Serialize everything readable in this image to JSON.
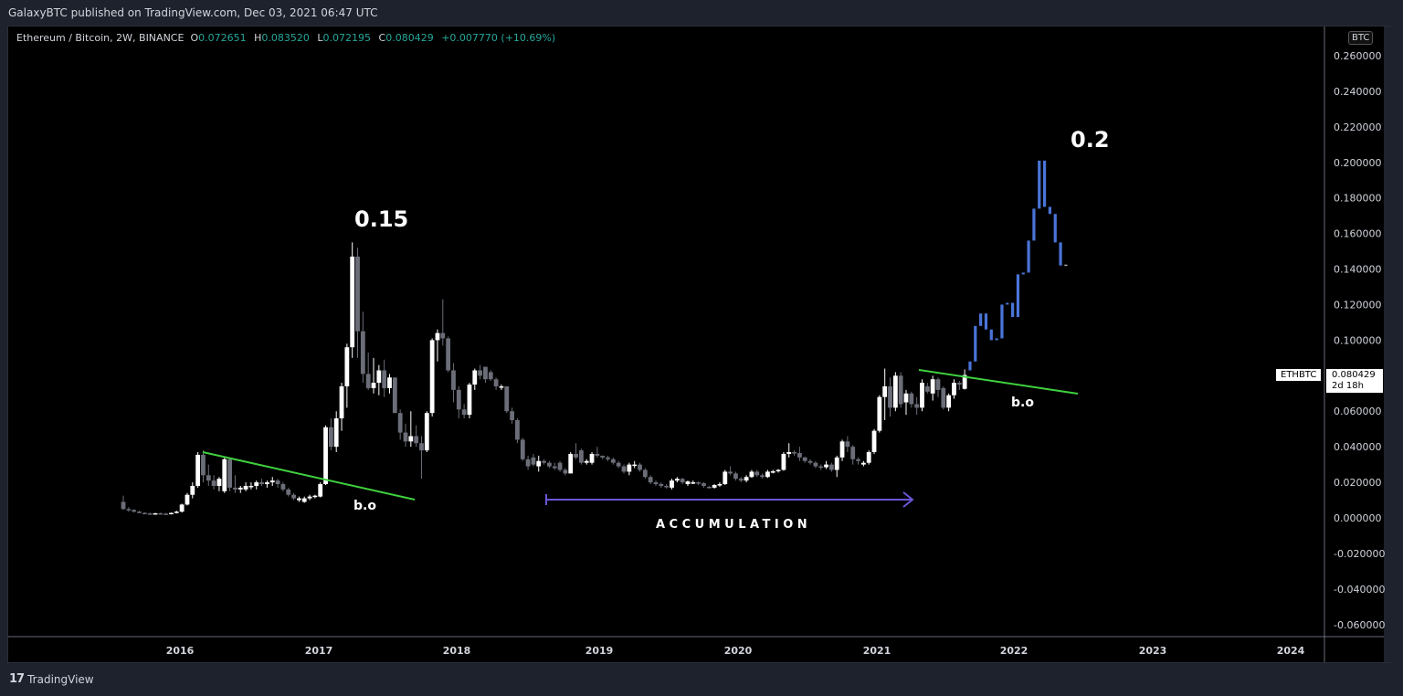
{
  "header": {
    "published": "GalaxyBTC published on TradingView.com, Dec 03, 2021 06:47 UTC"
  },
  "legend": {
    "symbol": "Ethereum / Bitcoin, 2W, BINANCE",
    "o_label": "O",
    "o": "0.072651",
    "h_label": "H",
    "h": "0.083520",
    "l_label": "L",
    "l": "0.072195",
    "c_label": "C",
    "c": "0.080429",
    "change": "+0.007770 (+10.69%)"
  },
  "price_axis": {
    "currency_badge": "BTC",
    "ticks": [
      "0.260000",
      "0.240000",
      "0.220000",
      "0.200000",
      "0.180000",
      "0.160000",
      "0.140000",
      "0.120000",
      "0.100000",
      "0.080000",
      "0.060000",
      "0.040000",
      "0.020000",
      "0.000000",
      "-0.020000",
      "-0.040000",
      "-0.060000"
    ],
    "last_symbol": "ETHBTC",
    "last_price": "0.080429",
    "countdown": "2d 18h"
  },
  "time_axis": {
    "ticks": [
      "2016",
      "2017",
      "2018",
      "2019",
      "2020",
      "2021",
      "2022",
      "2023",
      "2024"
    ]
  },
  "annotations": {
    "peak1": "0.15",
    "peak2": "0.2",
    "bo1": "b.o",
    "bo2": "b.o",
    "accumulation": "ACCUMULATION"
  },
  "footer": {
    "logo": "17",
    "brand": "TradingView"
  },
  "colors": {
    "up": "#ffffff",
    "down": "#6b6e78",
    "projection": "#4a74d8",
    "trendline": "#3fd13f",
    "arrow": "#6a56d6",
    "background": "#000000",
    "frame": "#1e222d"
  },
  "chart_data": {
    "type": "candlestick",
    "title": "Ethereum / Bitcoin, 2W, BINANCE",
    "xlabel": "",
    "ylabel": "BTC",
    "ylim": [
      -0.065,
      0.27
    ],
    "x_start": "2015-08",
    "interval": "2W",
    "grid": false,
    "legend_position": "top-left",
    "ohlc": [
      [
        0.009,
        0.0125,
        0.0045,
        0.005
      ],
      [
        0.005,
        0.006,
        0.0035,
        0.0045
      ],
      [
        0.0045,
        0.0048,
        0.003,
        0.0035
      ],
      [
        0.0035,
        0.004,
        0.0025,
        0.0028
      ],
      [
        0.0028,
        0.0032,
        0.0022,
        0.0025
      ],
      [
        0.0025,
        0.003,
        0.002,
        0.0024
      ],
      [
        0.0024,
        0.0028,
        0.002,
        0.0026
      ],
      [
        0.0026,
        0.003,
        0.0022,
        0.0024
      ],
      [
        0.0024,
        0.0028,
        0.002,
        0.0022
      ],
      [
        0.0022,
        0.003,
        0.002,
        0.0028
      ],
      [
        0.0028,
        0.004,
        0.0025,
        0.0035
      ],
      [
        0.0035,
        0.008,
        0.003,
        0.0075
      ],
      [
        0.0075,
        0.014,
        0.007,
        0.013
      ],
      [
        0.013,
        0.02,
        0.011,
        0.018
      ],
      [
        0.018,
        0.037,
        0.017,
        0.0355
      ],
      [
        0.0355,
        0.038,
        0.02,
        0.024
      ],
      [
        0.024,
        0.03,
        0.018,
        0.021
      ],
      [
        0.021,
        0.024,
        0.016,
        0.018
      ],
      [
        0.018,
        0.023,
        0.015,
        0.022
      ],
      [
        0.015,
        0.034,
        0.014,
        0.033
      ],
      [
        0.033,
        0.034,
        0.015,
        0.017
      ],
      [
        0.017,
        0.024,
        0.014,
        0.016
      ],
      [
        0.016,
        0.018,
        0.014,
        0.017
      ],
      [
        0.016,
        0.02,
        0.015,
        0.018
      ],
      [
        0.018,
        0.02,
        0.016,
        0.018
      ],
      [
        0.018,
        0.021,
        0.016,
        0.02
      ],
      [
        0.02,
        0.022,
        0.018,
        0.019
      ],
      [
        0.019,
        0.021,
        0.017,
        0.02
      ],
      [
        0.02,
        0.023,
        0.018,
        0.021
      ],
      [
        0.021,
        0.022,
        0.017,
        0.019
      ],
      [
        0.019,
        0.02,
        0.015,
        0.016
      ],
      [
        0.016,
        0.017,
        0.012,
        0.013
      ],
      [
        0.013,
        0.014,
        0.01,
        0.011
      ],
      [
        0.01,
        0.012,
        0.009,
        0.011
      ],
      [
        0.009,
        0.012,
        0.0085,
        0.011
      ],
      [
        0.011,
        0.013,
        0.01,
        0.012
      ],
      [
        0.012,
        0.013,
        0.011,
        0.0125
      ],
      [
        0.012,
        0.02,
        0.0115,
        0.019
      ],
      [
        0.019,
        0.052,
        0.0185,
        0.051
      ],
      [
        0.051,
        0.056,
        0.038,
        0.04
      ],
      [
        0.04,
        0.06,
        0.037,
        0.056
      ],
      [
        0.056,
        0.076,
        0.049,
        0.074
      ],
      [
        0.074,
        0.098,
        0.062,
        0.096
      ],
      [
        0.096,
        0.155,
        0.09,
        0.147
      ],
      [
        0.147,
        0.152,
        0.09,
        0.105
      ],
      [
        0.105,
        0.116,
        0.076,
        0.081
      ],
      [
        0.081,
        0.093,
        0.072,
        0.073
      ],
      [
        0.073,
        0.09,
        0.07,
        0.076
      ],
      [
        0.076,
        0.086,
        0.069,
        0.083
      ],
      [
        0.083,
        0.089,
        0.068,
        0.073
      ],
      [
        0.073,
        0.081,
        0.07,
        0.079
      ],
      [
        0.079,
        0.079,
        0.059,
        0.059
      ],
      [
        0.059,
        0.061,
        0.044,
        0.048
      ],
      [
        0.048,
        0.053,
        0.04,
        0.043
      ],
      [
        0.043,
        0.06,
        0.04,
        0.046
      ],
      [
        0.046,
        0.052,
        0.04,
        0.042
      ],
      [
        0.042,
        0.046,
        0.022,
        0.038
      ],
      [
        0.038,
        0.06,
        0.037,
        0.059
      ],
      [
        0.059,
        0.101,
        0.057,
        0.1
      ],
      [
        0.1,
        0.106,
        0.088,
        0.104
      ],
      [
        0.104,
        0.123,
        0.097,
        0.101
      ],
      [
        0.101,
        0.102,
        0.082,
        0.083
      ],
      [
        0.083,
        0.087,
        0.065,
        0.072
      ],
      [
        0.072,
        0.074,
        0.056,
        0.061
      ],
      [
        0.061,
        0.064,
        0.056,
        0.058
      ],
      [
        0.058,
        0.076,
        0.056,
        0.075
      ],
      [
        0.075,
        0.084,
        0.072,
        0.083
      ],
      [
        0.083,
        0.086,
        0.078,
        0.08
      ],
      [
        0.085,
        0.085,
        0.076,
        0.078
      ],
      [
        0.082,
        0.083,
        0.077,
        0.078
      ],
      [
        0.078,
        0.079,
        0.072,
        0.074
      ],
      [
        0.074,
        0.075,
        0.072,
        0.074
      ],
      [
        0.074,
        0.074,
        0.059,
        0.06
      ],
      [
        0.06,
        0.062,
        0.053,
        0.055
      ],
      [
        0.055,
        0.056,
        0.042,
        0.044
      ],
      [
        0.044,
        0.045,
        0.032,
        0.033
      ],
      [
        0.033,
        0.035,
        0.027,
        0.029
      ],
      [
        0.034,
        0.036,
        0.029,
        0.03
      ],
      [
        0.029,
        0.035,
        0.026,
        0.032
      ],
      [
        0.032,
        0.033,
        0.03,
        0.031
      ],
      [
        0.031,
        0.032,
        0.028,
        0.029
      ],
      [
        0.029,
        0.031,
        0.027,
        0.028
      ],
      [
        0.031,
        0.032,
        0.026,
        0.027
      ],
      [
        0.027,
        0.028,
        0.024,
        0.025
      ],
      [
        0.025,
        0.037,
        0.025,
        0.036
      ],
      [
        0.036,
        0.042,
        0.033,
        0.034
      ],
      [
        0.038,
        0.039,
        0.03,
        0.031
      ],
      [
        0.031,
        0.033,
        0.03,
        0.032
      ],
      [
        0.031,
        0.037,
        0.03,
        0.036
      ],
      [
        0.036,
        0.04,
        0.034,
        0.035
      ],
      [
        0.035,
        0.035,
        0.033,
        0.034
      ],
      [
        0.034,
        0.035,
        0.032,
        0.033
      ],
      [
        0.033,
        0.034,
        0.03,
        0.031
      ],
      [
        0.031,
        0.032,
        0.028,
        0.029
      ],
      [
        0.029,
        0.03,
        0.025,
        0.026
      ],
      [
        0.026,
        0.031,
        0.024,
        0.03
      ],
      [
        0.03,
        0.032,
        0.028,
        0.03
      ],
      [
        0.03,
        0.031,
        0.026,
        0.027
      ],
      [
        0.027,
        0.028,
        0.022,
        0.023
      ],
      [
        0.023,
        0.024,
        0.019,
        0.02
      ],
      [
        0.02,
        0.021,
        0.018,
        0.019
      ],
      [
        0.019,
        0.02,
        0.017,
        0.018
      ],
      [
        0.018,
        0.019,
        0.0165,
        0.0175
      ],
      [
        0.017,
        0.022,
        0.016,
        0.021
      ],
      [
        0.021,
        0.023,
        0.02,
        0.022
      ],
      [
        0.022,
        0.0225,
        0.019,
        0.02
      ],
      [
        0.019,
        0.021,
        0.018,
        0.0205
      ],
      [
        0.02,
        0.021,
        0.019,
        0.02
      ],
      [
        0.02,
        0.0205,
        0.0185,
        0.0195
      ],
      [
        0.0195,
        0.02,
        0.017,
        0.018
      ],
      [
        0.0175,
        0.018,
        0.0165,
        0.017
      ],
      [
        0.017,
        0.019,
        0.0165,
        0.0185
      ],
      [
        0.0185,
        0.02,
        0.0175,
        0.019
      ],
      [
        0.019,
        0.027,
        0.0185,
        0.026
      ],
      [
        0.026,
        0.029,
        0.024,
        0.025
      ],
      [
        0.025,
        0.026,
        0.021,
        0.022
      ],
      [
        0.022,
        0.023,
        0.02,
        0.021
      ],
      [
        0.021,
        0.024,
        0.02,
        0.023
      ],
      [
        0.023,
        0.027,
        0.0225,
        0.026
      ],
      [
        0.026,
        0.027,
        0.023,
        0.024
      ],
      [
        0.024,
        0.025,
        0.022,
        0.023
      ],
      [
        0.023,
        0.027,
        0.0225,
        0.026
      ],
      [
        0.026,
        0.027,
        0.025,
        0.0262
      ],
      [
        0.0262,
        0.0275,
        0.0255,
        0.027
      ],
      [
        0.027,
        0.037,
        0.0265,
        0.036
      ],
      [
        0.036,
        0.042,
        0.034,
        0.037
      ],
      [
        0.037,
        0.038,
        0.035,
        0.0365
      ],
      [
        0.0365,
        0.04,
        0.032,
        0.034
      ],
      [
        0.034,
        0.0345,
        0.031,
        0.032
      ],
      [
        0.032,
        0.033,
        0.03,
        0.031
      ],
      [
        0.031,
        0.032,
        0.028,
        0.029
      ],
      [
        0.029,
        0.03,
        0.027,
        0.0285
      ],
      [
        0.0285,
        0.032,
        0.0275,
        0.03
      ],
      [
        0.03,
        0.031,
        0.026,
        0.027
      ],
      [
        0.027,
        0.035,
        0.023,
        0.034
      ],
      [
        0.034,
        0.044,
        0.032,
        0.043
      ],
      [
        0.043,
        0.046,
        0.037,
        0.04
      ],
      [
        0.04,
        0.041,
        0.03,
        0.033
      ],
      [
        0.033,
        0.034,
        0.03,
        0.032
      ],
      [
        0.03,
        0.032,
        0.029,
        0.031
      ],
      [
        0.031,
        0.038,
        0.03,
        0.037
      ],
      [
        0.037,
        0.05,
        0.036,
        0.049
      ],
      [
        0.049,
        0.069,
        0.048,
        0.068
      ],
      [
        0.068,
        0.084,
        0.055,
        0.074
      ],
      [
        0.074,
        0.079,
        0.057,
        0.062
      ],
      [
        0.062,
        0.082,
        0.06,
        0.08
      ],
      [
        0.08,
        0.082,
        0.062,
        0.064
      ],
      [
        0.065,
        0.072,
        0.058,
        0.07
      ],
      [
        0.07,
        0.071,
        0.062,
        0.064
      ],
      [
        0.064,
        0.068,
        0.058,
        0.062
      ],
      [
        0.062,
        0.078,
        0.06,
        0.076
      ],
      [
        0.074,
        0.076,
        0.07,
        0.071
      ],
      [
        0.07,
        0.08,
        0.066,
        0.078
      ],
      [
        0.078,
        0.079,
        0.068,
        0.072
      ],
      [
        0.073,
        0.074,
        0.061,
        0.062
      ],
      [
        0.062,
        0.07,
        0.06,
        0.069
      ],
      [
        0.069,
        0.078,
        0.067,
        0.076
      ],
      [
        0.076,
        0.077,
        0.072,
        0.075
      ],
      [
        0.0726,
        0.0835,
        0.0722,
        0.0804
      ]
    ],
    "projection": [
      [
        0.083,
        0.088,
        0.083,
        0.088
      ],
      [
        0.088,
        0.108,
        0.088,
        0.108
      ],
      [
        0.108,
        0.115,
        0.108,
        0.115
      ],
      [
        0.115,
        0.115,
        0.106,
        0.106
      ],
      [
        0.106,
        0.106,
        0.1,
        0.1
      ],
      [
        0.1,
        0.101,
        0.1,
        0.101
      ],
      [
        0.101,
        0.12,
        0.101,
        0.12
      ],
      [
        0.12,
        0.121,
        0.12,
        0.121
      ],
      [
        0.121,
        0.113,
        0.113,
        0.113
      ],
      [
        0.113,
        0.137,
        0.113,
        0.137
      ],
      [
        0.137,
        0.138,
        0.137,
        0.138
      ],
      [
        0.138,
        0.156,
        0.138,
        0.156
      ],
      [
        0.156,
        0.174,
        0.156,
        0.174
      ],
      [
        0.174,
        0.201,
        0.174,
        0.201
      ],
      [
        0.201,
        0.201,
        0.175,
        0.175
      ],
      [
        0.175,
        0.175,
        0.171,
        0.171
      ],
      [
        0.171,
        0.171,
        0.155,
        0.155
      ],
      [
        0.155,
        0.155,
        0.142,
        0.142
      ],
      [
        0.1425,
        0.1425,
        0.1425,
        0.1425
      ]
    ],
    "trendlines": [
      {
        "from": [
          "2016-03",
          0.037
        ],
        "to": [
          "2017-09",
          0.01
        ],
        "color": "#3fd13f"
      },
      {
        "from": [
          "2021-05",
          0.083
        ],
        "to": [
          "2022-09",
          0.07
        ],
        "color": "#3fd13f"
      }
    ],
    "annotations_text": [
      {
        "text": "0.15",
        "near": "2017-06"
      },
      {
        "text": "0.2",
        "near": "2022-07"
      },
      {
        "text": "b.o",
        "near": "2017-04"
      },
      {
        "text": "b.o",
        "near": "2022-01"
      },
      {
        "text": "ACCUMULATION",
        "range": [
          "2018-08",
          "2021-04"
        ]
      }
    ],
    "y_ticks": [
      0.26,
      0.24,
      0.22,
      0.2,
      0.18,
      0.16,
      0.14,
      0.12,
      0.1,
      0.08,
      0.06,
      0.04,
      0.02,
      0.0,
      -0.02,
      -0.04,
      -0.06
    ],
    "x_ticks": [
      "2016",
      "2017",
      "2018",
      "2019",
      "2020",
      "2021",
      "2022",
      "2023",
      "2024"
    ],
    "last_value": 0.080429
  }
}
